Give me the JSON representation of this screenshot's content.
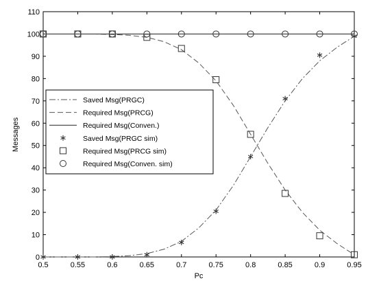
{
  "chart_data": {
    "type": "line",
    "title": "",
    "xlabel": "Pc",
    "ylabel": "Messages",
    "xlim": [
      0.5,
      0.95
    ],
    "ylim": [
      0,
      110
    ],
    "xticks": [
      "0.5",
      "0.55",
      "0.6",
      "0.65",
      "0.7",
      "0.75",
      "0.8",
      "0.85",
      "0.9",
      "0.95"
    ],
    "yticks": [
      "0",
      "10",
      "20",
      "30",
      "40",
      "50",
      "60",
      "70",
      "80",
      "90",
      "100",
      "110"
    ],
    "grid": false,
    "legend_position": "middle-left",
    "series": [
      {
        "name": "Saved Msg(PRGC)",
        "style": "dash-dot",
        "x": [
          0.5,
          0.525,
          0.55,
          0.575,
          0.6,
          0.625,
          0.65,
          0.675,
          0.7,
          0.725,
          0.75,
          0.775,
          0.8,
          0.825,
          0.85,
          0.875,
          0.9,
          0.925,
          0.95
        ],
        "values": [
          0,
          0,
          0,
          0,
          0.2,
          0.6,
          1.5,
          3.5,
          7,
          13,
          21,
          32,
          45,
          58,
          70,
          80,
          88,
          94,
          99
        ]
      },
      {
        "name": "Required Msg(PRCG)",
        "style": "dashed",
        "x": [
          0.5,
          0.525,
          0.55,
          0.575,
          0.6,
          0.625,
          0.65,
          0.675,
          0.7,
          0.725,
          0.75,
          0.775,
          0.8,
          0.825,
          0.85,
          0.875,
          0.9,
          0.925,
          0.95
        ],
        "values": [
          100,
          100,
          100,
          100,
          99.8,
          99.4,
          98.5,
          96.5,
          93,
          87,
          79,
          68,
          55,
          42,
          30,
          20,
          12,
          6,
          1
        ]
      },
      {
        "name": "Required Msg(Conven.)",
        "style": "solid",
        "x": [
          0.5,
          0.95
        ],
        "values": [
          100,
          100
        ]
      },
      {
        "name": "Saved Msg(PRGC  sim)",
        "style": "marker-star",
        "x": [
          0.5,
          0.55,
          0.6,
          0.65,
          0.7,
          0.75,
          0.8,
          0.85,
          0.9,
          0.95
        ],
        "values": [
          0,
          0,
          0,
          1,
          6.5,
          20.5,
          45,
          71,
          90.5,
          99
        ]
      },
      {
        "name": "Required Msg(PRCG  sim)",
        "style": "marker-square",
        "x": [
          0.5,
          0.55,
          0.6,
          0.65,
          0.7,
          0.75,
          0.8,
          0.85,
          0.9,
          0.95
        ],
        "values": [
          100,
          100,
          100,
          98.5,
          93.5,
          79.5,
          55,
          28.5,
          9.5,
          1
        ]
      },
      {
        "name": "Required Msg(Conven.  sim)",
        "style": "marker-circle",
        "x": [
          0.5,
          0.55,
          0.6,
          0.65,
          0.7,
          0.75,
          0.8,
          0.85,
          0.9,
          0.95
        ],
        "values": [
          100,
          100,
          100,
          100,
          100,
          100,
          100,
          100,
          100,
          100
        ]
      }
    ]
  }
}
